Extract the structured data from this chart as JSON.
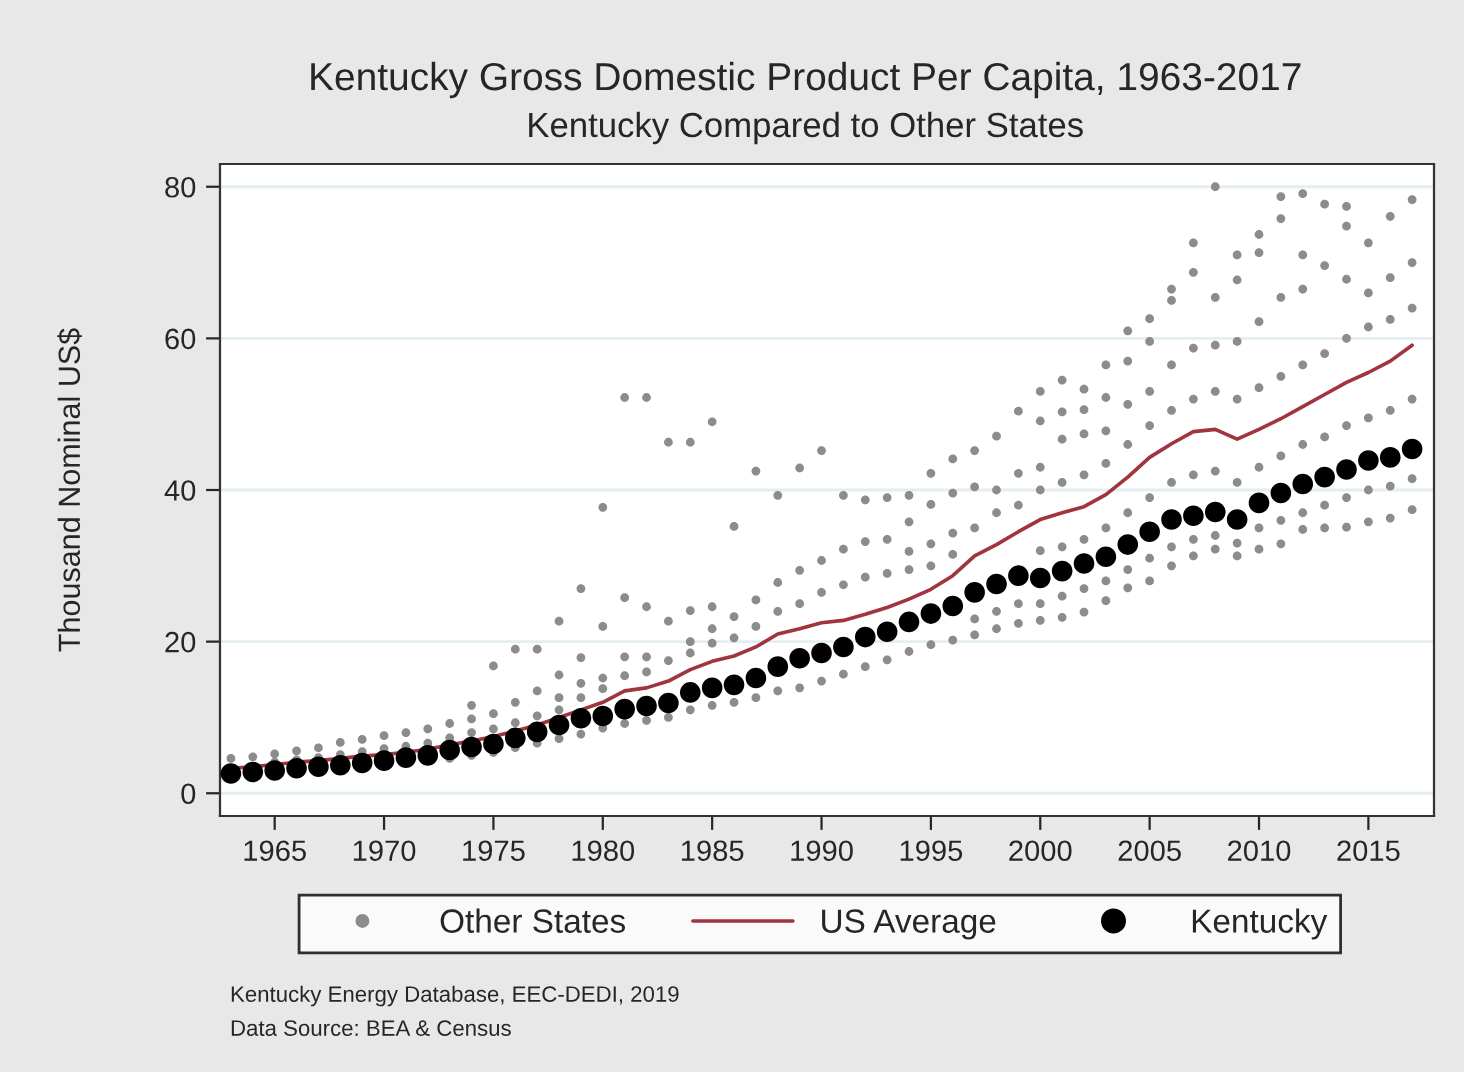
{
  "chart_data": {
    "type": "scatter",
    "title": "Kentucky Gross Domestic Product Per Capita, 1963-2017",
    "subtitle": "Kentucky Compared to Other States",
    "ylabel": "Thousand Nominal US$",
    "xlim": [
      1962.5,
      2018
    ],
    "xticks": [
      1965,
      1970,
      1975,
      1980,
      1985,
      1990,
      1995,
      2000,
      2005,
      2010,
      2015
    ],
    "ylim": [
      -3,
      83
    ],
    "yticks": [
      0,
      20,
      40,
      60,
      80
    ],
    "grid": "y",
    "legend": "bottom",
    "annotations": [
      "Kentucky Energy Database, EEC-DEDI, 2019",
      "Data Source: BEA & Census"
    ],
    "series": [
      {
        "name": "Other States",
        "color": "#8c8c8c",
        "marker": "circle",
        "x": [
          1963,
          1964,
          1965,
          1965,
          1966,
          1966,
          1967,
          1967,
          1968,
          1968,
          1969,
          1969,
          1970,
          1970,
          1971,
          1971,
          1972,
          1972,
          1973,
          1973,
          1973,
          1974,
          1974,
          1974,
          1974,
          1975,
          1975,
          1975,
          1975,
          1976,
          1976,
          1976,
          1976,
          1977,
          1977,
          1977,
          1977,
          1978,
          1978,
          1978,
          1978,
          1978,
          1979,
          1979,
          1979,
          1979,
          1979,
          1980,
          1980,
          1980,
          1980,
          1980,
          1981,
          1981,
          1981,
          1981,
          1981,
          1982,
          1982,
          1982,
          1982,
          1982,
          1983,
          1983,
          1983,
          1983,
          1984,
          1984,
          1984,
          1984,
          1984,
          1985,
          1985,
          1985,
          1985,
          1985,
          1986,
          1986,
          1986,
          1986,
          1987,
          1987,
          1987,
          1987,
          1988,
          1988,
          1988,
          1988,
          1989,
          1989,
          1989,
          1989,
          1990,
          1990,
          1990,
          1990,
          1991,
          1991,
          1991,
          1991,
          1992,
          1992,
          1992,
          1992,
          1993,
          1993,
          1993,
          1993,
          1994,
          1994,
          1994,
          1994,
          1994,
          1995,
          1995,
          1995,
          1995,
          1995,
          1996,
          1996,
          1996,
          1996,
          1996,
          1997,
          1997,
          1997,
          1997,
          1997,
          1998,
          1998,
          1998,
          1998,
          1998,
          1999,
          1999,
          1999,
          1999,
          1999,
          2000,
          2000,
          2000,
          2000,
          2000,
          2000,
          2000,
          2001,
          2001,
          2001,
          2001,
          2001,
          2001,
          2001,
          2002,
          2002,
          2002,
          2002,
          2002,
          2002,
          2002,
          2003,
          2003,
          2003,
          2003,
          2003,
          2003,
          2003,
          2004,
          2004,
          2004,
          2004,
          2004,
          2004,
          2004,
          2005,
          2005,
          2005,
          2005,
          2005,
          2005,
          2005,
          2006,
          2006,
          2006,
          2006,
          2006,
          2006,
          2006,
          2007,
          2007,
          2007,
          2007,
          2007,
          2007,
          2007,
          2008,
          2008,
          2008,
          2008,
          2008,
          2008,
          2008,
          2009,
          2009,
          2009,
          2009,
          2009,
          2009,
          2009,
          2010,
          2010,
          2010,
          2010,
          2010,
          2010,
          2010,
          2011,
          2011,
          2011,
          2011,
          2011,
          2011,
          2011,
          2012,
          2012,
          2012,
          2012,
          2012,
          2012,
          2012,
          2013,
          2013,
          2013,
          2013,
          2013,
          2013,
          2014,
          2014,
          2014,
          2014,
          2014,
          2014,
          2014,
          2015,
          2015,
          2015,
          2015,
          2015,
          2015,
          2016,
          2016,
          2016,
          2016,
          2016,
          2016,
          2017,
          2017,
          2017,
          2017,
          2017,
          2017
        ],
        "values": [
          4.6,
          4.8,
          4.1,
          5.2,
          4.4,
          5.6,
          4.7,
          6.0,
          5.1,
          6.7,
          5.5,
          7.1,
          5.9,
          7.6,
          6.2,
          8.0,
          6.6,
          8.5,
          4.6,
          7.3,
          9.2,
          5.0,
          8.0,
          9.8,
          11.6,
          5.4,
          8.5,
          10.5,
          16.8,
          6.0,
          9.3,
          12.0,
          19.0,
          6.6,
          10.2,
          13.5,
          19.0,
          7.2,
          11.0,
          12.6,
          15.6,
          22.7,
          7.8,
          12.6,
          14.5,
          17.9,
          27.0,
          8.6,
          13.8,
          15.2,
          22.0,
          37.7,
          9.2,
          15.5,
          18.0,
          25.8,
          52.2,
          9.6,
          16.0,
          18.0,
          24.6,
          52.2,
          10.0,
          17.5,
          22.7,
          46.3,
          11.0,
          18.5,
          20.0,
          24.1,
          46.3,
          11.6,
          19.8,
          21.7,
          24.6,
          49.0,
          12.0,
          20.5,
          23.3,
          35.2,
          12.6,
          22.0,
          25.5,
          42.5,
          13.5,
          24.0,
          27.8,
          39.3,
          13.9,
          25.0,
          29.4,
          42.9,
          14.8,
          26.5,
          30.7,
          45.2,
          15.7,
          27.5,
          32.2,
          39.3,
          16.7,
          28.5,
          33.2,
          38.7,
          17.6,
          29.0,
          33.5,
          39.0,
          18.7,
          29.5,
          31.9,
          35.8,
          39.3,
          19.6,
          30.0,
          32.9,
          38.1,
          42.2,
          20.2,
          31.5,
          34.3,
          39.6,
          44.1,
          20.9,
          23.0,
          35.0,
          40.4,
          45.2,
          21.7,
          24.0,
          37.0,
          40.0,
          47.1,
          22.4,
          25.0,
          38.0,
          42.2,
          50.4,
          22.8,
          25.0,
          32.0,
          40.0,
          43.0,
          49.1,
          53.0,
          23.2,
          26.0,
          32.5,
          41.0,
          46.7,
          50.3,
          54.5,
          23.9,
          27.0,
          33.5,
          42.0,
          47.4,
          50.6,
          53.3,
          25.4,
          28.0,
          35.0,
          43.5,
          47.8,
          52.2,
          56.5,
          27.1,
          29.5,
          37.0,
          46.0,
          51.3,
          57.0,
          61.0,
          28.0,
          31.0,
          39.0,
          48.5,
          53.0,
          59.6,
          62.6,
          30.0,
          32.5,
          41.0,
          50.5,
          56.5,
          65.0,
          66.5,
          31.3,
          33.5,
          42.0,
          52.0,
          58.7,
          68.7,
          72.6,
          32.2,
          34.0,
          42.5,
          53.0,
          59.1,
          65.4,
          80.0,
          31.3,
          33.0,
          41.0,
          52.0,
          59.6,
          67.7,
          71.0,
          32.2,
          35.0,
          43.0,
          53.5,
          62.2,
          71.3,
          73.7,
          32.9,
          36.0,
          44.5,
          55.0,
          65.4,
          75.8,
          78.7,
          34.8,
          37.0,
          46.0,
          56.5,
          66.5,
          71.0,
          79.1,
          35.0,
          38.0,
          47.0,
          58.0,
          69.6,
          77.7,
          35.1,
          39.0,
          48.5,
          60.0,
          67.8,
          74.8,
          77.4,
          35.8,
          40.0,
          49.5,
          61.5,
          66.0,
          72.6,
          36.3,
          40.5,
          50.5,
          62.5,
          68.0,
          76.1,
          37.4,
          41.5,
          52.0,
          64.0,
          70.0,
          78.3
        ]
      },
      {
        "name": "US Average",
        "type": "line",
        "color": "#a0343f",
        "marker": "none",
        "line_style": "solid",
        "x": [
          1963,
          1964,
          1965,
          1966,
          1967,
          1968,
          1969,
          1970,
          1971,
          1972,
          1973,
          1974,
          1975,
          1976,
          1977,
          1978,
          1979,
          1980,
          1981,
          1982,
          1983,
          1984,
          1985,
          1986,
          1987,
          1988,
          1989,
          1990,
          1991,
          1992,
          1993,
          1994,
          1995,
          1996,
          1997,
          1998,
          1999,
          2000,
          2001,
          2002,
          2003,
          2004,
          2005,
          2006,
          2007,
          2008,
          2009,
          2010,
          2011,
          2012,
          2013,
          2014,
          2015,
          2016,
          2017
        ],
        "values": [
          3.3,
          3.5,
          3.8,
          4.1,
          4.3,
          4.6,
          4.9,
          5.1,
          5.4,
          5.8,
          6.4,
          6.9,
          7.5,
          8.2,
          9.0,
          10.0,
          11.0,
          12.0,
          13.5,
          13.9,
          14.8,
          16.3,
          17.4,
          18.1,
          19.3,
          21.0,
          21.7,
          22.5,
          22.8,
          23.6,
          24.5,
          25.6,
          26.9,
          28.7,
          31.3,
          32.8,
          34.5,
          36.1,
          37.0,
          37.8,
          39.4,
          41.7,
          44.3,
          46.1,
          47.7,
          48.0,
          46.7,
          48.0,
          49.4,
          51.0,
          52.6,
          54.2,
          55.5,
          57.0,
          59.1
        ]
      },
      {
        "name": "Kentucky",
        "color": "#000000",
        "marker": "circle",
        "x": [
          1963,
          1964,
          1965,
          1966,
          1967,
          1968,
          1969,
          1970,
          1971,
          1972,
          1973,
          1974,
          1975,
          1976,
          1977,
          1978,
          1979,
          1980,
          1981,
          1982,
          1983,
          1984,
          1985,
          1986,
          1987,
          1988,
          1989,
          1990,
          1991,
          1992,
          1993,
          1994,
          1995,
          1996,
          1997,
          1998,
          1999,
          2000,
          2001,
          2002,
          2003,
          2004,
          2005,
          2006,
          2007,
          2008,
          2009,
          2010,
          2011,
          2012,
          2013,
          2014,
          2015,
          2016,
          2017
        ],
        "values": [
          2.6,
          2.8,
          3.0,
          3.3,
          3.5,
          3.7,
          4.0,
          4.3,
          4.7,
          5.0,
          5.7,
          6.1,
          6.5,
          7.3,
          8.1,
          9.0,
          9.9,
          10.2,
          11.1,
          11.5,
          11.9,
          13.3,
          13.9,
          14.3,
          15.2,
          16.7,
          17.8,
          18.5,
          19.3,
          20.6,
          21.3,
          22.6,
          23.7,
          24.7,
          26.5,
          27.6,
          28.7,
          28.4,
          29.3,
          30.3,
          31.2,
          32.8,
          34.5,
          36.1,
          36.6,
          37.1,
          36.1,
          38.3,
          39.6,
          40.8,
          41.7,
          42.7,
          43.9,
          44.3,
          45.4
        ]
      }
    ]
  }
}
